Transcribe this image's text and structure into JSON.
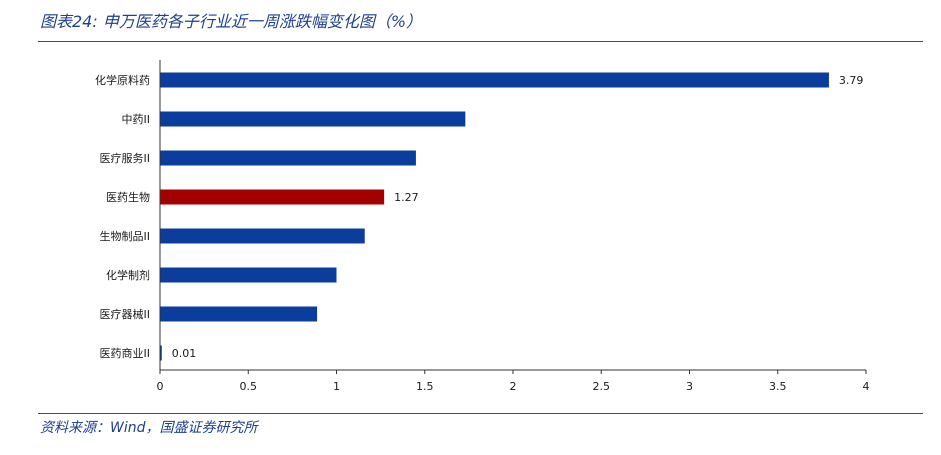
{
  "header": {
    "title": "图表24:  申万医药各子行业近一周涨跌幅变化图（%）"
  },
  "footer": {
    "source": "资料来源：Wind，国盛证券研究所"
  },
  "colors": {
    "bar_default": "#0b3d9c",
    "bar_highlight": "#a50000",
    "rule": "#2f4d8f",
    "text_blue": "#1f3f8f"
  },
  "chart_data": {
    "type": "bar",
    "orientation": "horizontal",
    "categories": [
      "化学原料药",
      "中药II",
      "医疗服务II",
      "医药生物",
      "生物制品II",
      "化学制剂",
      "医疗器械II",
      "医药商业II"
    ],
    "values": [
      3.79,
      1.73,
      1.45,
      1.27,
      1.16,
      1.0,
      0.89,
      0.01
    ],
    "data_labels": [
      "3.79",
      "",
      "",
      "1.27",
      "",
      "",
      "",
      "0.01"
    ],
    "highlight": "医药生物",
    "xlim": [
      0,
      4
    ],
    "xticks": [
      "0",
      "0.5",
      "1",
      "1.5",
      "2",
      "2.5",
      "3",
      "3.5",
      "4"
    ],
    "grid": false
  }
}
